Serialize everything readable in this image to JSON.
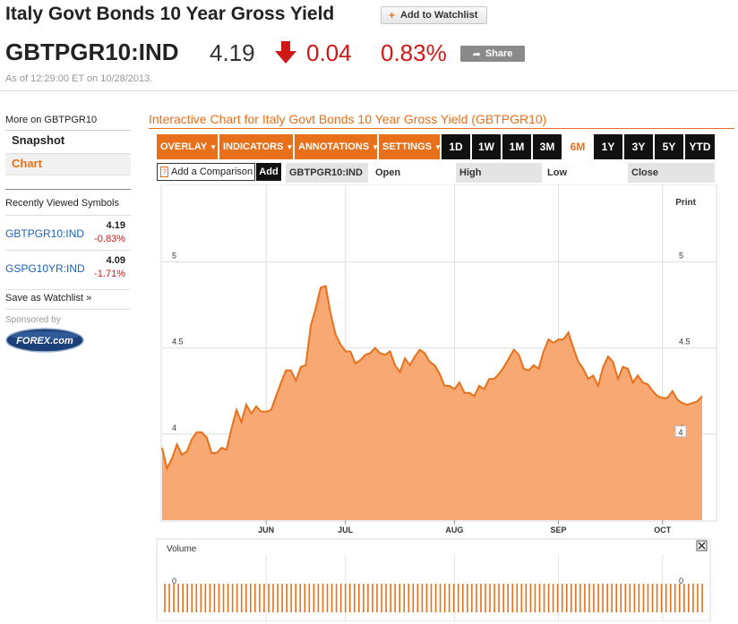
{
  "header": {
    "title": "Italy Govt Bonds 10 Year Gross Yield",
    "watchlist_label": "Add to Watchlist",
    "ticker": "GBTPGR10:IND",
    "price": "4.19",
    "change": "0.04",
    "change_pct": "0.83%",
    "share_label": "Share",
    "as_of": "As of 12:29:00 ET on 10/28/2013.",
    "down_color": "#d01818"
  },
  "sidebar": {
    "more_on": "More on GBTPGR10",
    "tabs": [
      {
        "label": "Snapshot"
      },
      {
        "label": "Chart"
      }
    ],
    "recent_title": "Recently Viewed Symbols",
    "recent": [
      {
        "symbol": "GBTPGR10:IND",
        "value": "4.19",
        "change": "-0.83%"
      },
      {
        "symbol": "GSPG10YR:IND",
        "value": "4.09",
        "change": "-1.71%"
      }
    ],
    "save_watchlist": "Save as Watchlist »",
    "sponsored_by": "Sponsored by",
    "sponsor_logo_text": "FOREX.com"
  },
  "chart_panel": {
    "title": "Interactive Chart for Italy Govt Bonds 10 Year Gross Yield (GBTPGR10)",
    "menus": [
      {
        "label": "OVERLAY"
      },
      {
        "label": "INDICATORS"
      },
      {
        "label": "ANNOTATIONS"
      },
      {
        "label": "SETTINGS"
      }
    ],
    "ranges": [
      {
        "label": "1D"
      },
      {
        "label": "1W"
      },
      {
        "label": "1M"
      },
      {
        "label": "3M"
      },
      {
        "label": "6M"
      },
      {
        "label": "1Y"
      },
      {
        "label": "3Y"
      },
      {
        "label": "5Y"
      },
      {
        "label": "YTD"
      }
    ],
    "active_range": "6M",
    "compare_label": "Add a Comparison",
    "compare_help": "?",
    "add_label": "Add",
    "symbol_field": "GBTPGR10:IND",
    "open_label": "Open",
    "high_label": "High",
    "low_label": "Low",
    "close_label": "Close",
    "print_label": "Print",
    "volume_label": "Volume",
    "close_icon": "close-icon",
    "accent": "#e8701a"
  },
  "chart_data": {
    "type": "area",
    "title": "",
    "xlabel": "",
    "ylabel": "",
    "ylim": [
      3.5,
      5.45
    ],
    "yticks": [
      4,
      4.5,
      5
    ],
    "ytick_labels": [
      "4",
      "4.5",
      "5"
    ],
    "last_value_label": "4",
    "xticks": [
      "JUN",
      "JUL",
      "AUG",
      "SEP",
      "OCT"
    ],
    "grid": true,
    "color": "#e8701a",
    "fill": "#f8a872",
    "values": [
      3.92,
      3.8,
      3.86,
      3.94,
      3.88,
      3.9,
      3.97,
      4.01,
      4.01,
      3.98,
      3.89,
      3.89,
      3.92,
      3.91,
      4.03,
      4.14,
      4.07,
      4.17,
      4.12,
      4.16,
      4.13,
      4.13,
      4.14,
      4.22,
      4.3,
      4.37,
      4.37,
      4.31,
      4.39,
      4.4,
      4.63,
      4.73,
      4.85,
      4.86,
      4.7,
      4.58,
      4.52,
      4.48,
      4.48,
      4.41,
      4.43,
      4.46,
      4.47,
      4.5,
      4.47,
      4.46,
      4.48,
      4.4,
      4.36,
      4.44,
      4.4,
      4.45,
      4.49,
      4.47,
      4.42,
      4.4,
      4.35,
      4.28,
      4.28,
      4.26,
      4.3,
      4.24,
      4.24,
      4.22,
      4.28,
      4.26,
      4.32,
      4.32,
      4.35,
      4.39,
      4.44,
      4.49,
      4.46,
      4.38,
      4.37,
      4.4,
      4.38,
      4.48,
      4.55,
      4.53,
      4.55,
      4.55,
      4.59,
      4.5,
      4.42,
      4.38,
      4.32,
      4.34,
      4.28,
      4.39,
      4.45,
      4.42,
      4.32,
      4.39,
      4.38,
      4.3,
      4.34,
      4.3,
      4.29,
      4.25,
      4.22,
      4.21,
      4.21,
      4.25,
      4.2,
      4.18,
      4.17,
      4.18,
      4.19,
      4.22
    ],
    "volume": {
      "label": "Volume",
      "ytick_label": "0",
      "bar_count": 120,
      "values_note": ""
    }
  }
}
